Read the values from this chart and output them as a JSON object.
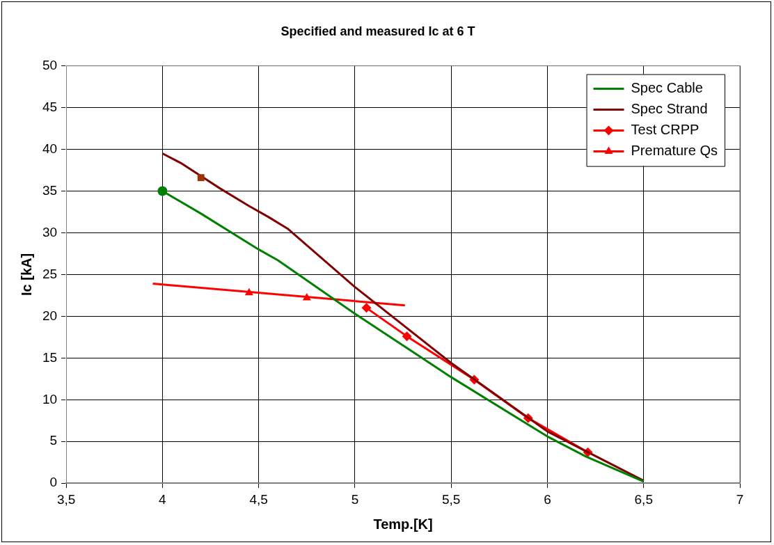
{
  "chart_data": {
    "type": "line",
    "title": "Specified and measured Ic at 6 T",
    "xlabel": "Temp.[K]",
    "ylabel": "Ic [kA]",
    "xlim": [
      3.5,
      7
    ],
    "xticks": [
      {
        "value": 3.5,
        "label": "3,5"
      },
      4,
      {
        "value": 4.5,
        "label": "4,5"
      },
      5,
      {
        "value": 5.5,
        "label": "5,5"
      },
      6,
      {
        "value": 6.5,
        "label": "6,5"
      },
      7
    ],
    "ylim": [
      0,
      50
    ],
    "yticks": [
      0,
      5,
      10,
      15,
      20,
      25,
      30,
      35,
      40,
      45,
      50
    ],
    "grid": true,
    "legend": "top right",
    "series": [
      {
        "name": "Spec Cable",
        "color": "#008000",
        "marker": "none",
        "x": [
          4,
          4.2,
          4.5,
          4.6,
          4.75,
          5,
          5.5,
          6,
          6.2,
          6.5
        ],
        "values": [
          35,
          32.3,
          28,
          26.7,
          24.3,
          20.3,
          12.7,
          5.6,
          3.2,
          0.2
        ]
      },
      {
        "name": "Spec Strand",
        "color": "#800000",
        "marker": "none",
        "x": [
          4,
          4.1,
          4.3,
          4.45,
          4.55,
          4.65,
          5,
          5.5,
          6,
          6.5
        ],
        "values": [
          39.5,
          38.3,
          35.3,
          33.2,
          31.9,
          30.5,
          23.5,
          14.4,
          6.2,
          0.3
        ]
      },
      {
        "name": "Test CRPP",
        "color": "#ff0000",
        "marker": "diamond",
        "x": [
          5.06,
          5.27,
          5.62,
          5.9,
          6.21
        ],
        "values": [
          21.0,
          17.6,
          12.4,
          7.8,
          3.7
        ]
      },
      {
        "name": "Premature Qs",
        "type": "scatter",
        "color": "#ff0000",
        "marker": "triangle",
        "x": [
          4.45,
          4.75
        ],
        "values": [
          22.8,
          22.2
        ]
      },
      {
        "type": "line",
        "color": "#ff0000",
        "marker": "none",
        "x": [
          3.95,
          5.26
        ],
        "values": [
          23.9,
          21.3
        ]
      },
      {
        "type": "scatter",
        "color": "#008000",
        "marker": "circle",
        "x": [
          4
        ],
        "values": [
          35
        ]
      },
      {
        "type": "scatter",
        "color": "#993300",
        "marker": "square",
        "x": [
          4.2
        ],
        "values": [
          36.6
        ]
      }
    ]
  }
}
